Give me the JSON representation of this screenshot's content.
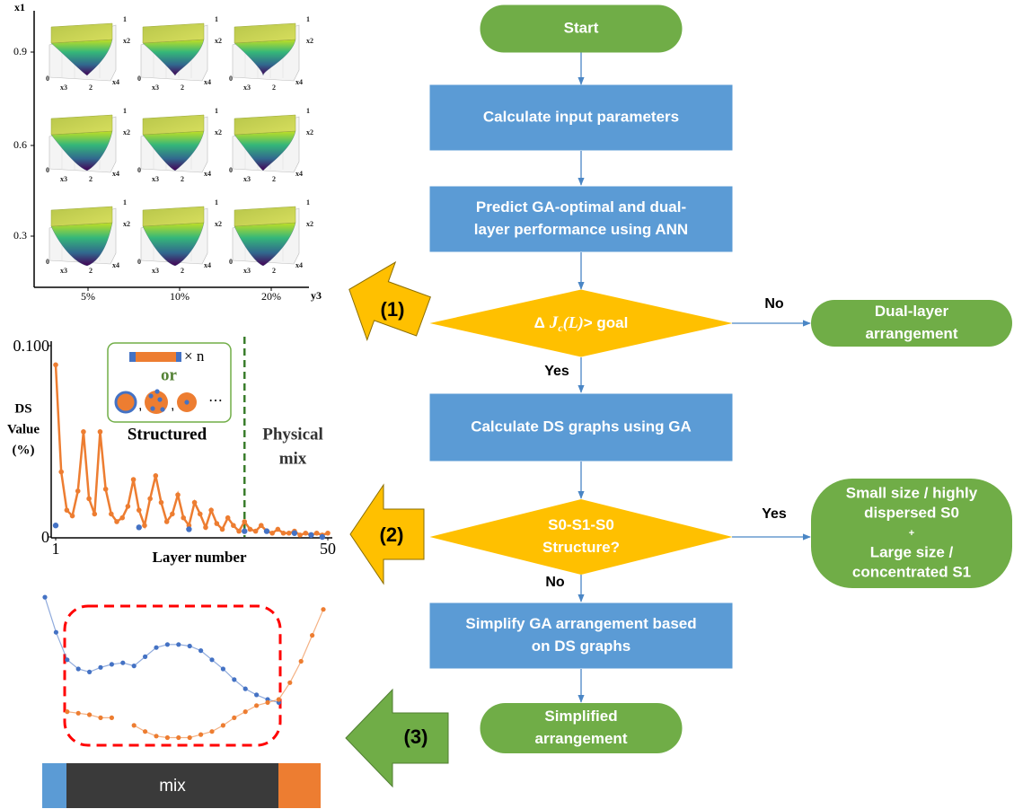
{
  "flowchart": {
    "nodes": [
      {
        "lines": [
          "Start"
        ]
      },
      {
        "lines": [
          "Calculate input parameters"
        ]
      },
      {
        "lines": [
          "Predict GA-optimal and dual-",
          "layer performance using ANN"
        ]
      },
      {
        "condition": {
          "delta": "Δ",
          "symbol": "J",
          "subscript": "c",
          "argument": "(L)",
          "suffix": "> goal"
        }
      },
      {
        "lines": [
          "Dual-layer",
          "arrangement"
        ]
      },
      {
        "lines": [
          "Calculate DS graphs using GA"
        ]
      },
      {
        "lines": [
          "S0-S1-S0",
          "Structure?"
        ]
      },
      {
        "lines": [
          "Small size / highly",
          "dispersed S0",
          "+",
          "Large size /",
          "concentrated S1"
        ]
      },
      {
        "lines": [
          "Simplify GA arrangement based",
          "on DS graphs"
        ]
      },
      {
        "lines": [
          "Simplified",
          "arrangement"
        ]
      }
    ],
    "edge_labels": [
      "No",
      "Yes",
      "Yes",
      "No"
    ]
  },
  "stage_arrows": [
    "(1)",
    "(2)",
    "(3)"
  ],
  "surface_grid": {
    "y_axis_label": "x1",
    "x_axis_label": "y3",
    "yticks": [
      0.9,
      0.6,
      0.3
    ],
    "xticks": [
      {
        "value": 5,
        "label": "5%"
      },
      {
        "value": 10,
        "label": "10%"
      },
      {
        "value": 20,
        "label": "20%"
      }
    ],
    "panel_labels": {
      "vertical": "x2",
      "left": "x3",
      "right": "x4",
      "ticks": [
        0,
        1,
        2
      ]
    }
  },
  "ds_chart": {
    "ylabel": [
      "DS",
      "Value",
      "(%)"
    ],
    "xlabel": "Layer number",
    "ylim": [
      0,
      0.1
    ],
    "yticks": [
      0,
      {
        "value": 0.1,
        "label": "0.100"
      }
    ],
    "xlim": [
      1,
      50
    ],
    "xticks": [
      1,
      50
    ],
    "series": [
      {
        "color": "#ed7d31",
        "values": [
          0.09,
          0.034,
          0.014,
          0.011,
          0.024,
          0.055,
          0.02,
          0.012,
          0.055,
          0.025,
          0.012,
          0.008,
          0.01,
          0.016,
          0.03,
          0.014,
          0.006,
          0.02,
          0.032,
          0.018,
          0.008,
          0.012,
          0.022,
          0.01,
          0.006,
          0.018,
          0.012,
          0.005,
          0.014,
          0.007,
          0.004,
          0.01,
          0.006,
          0.003,
          0.008,
          0.004,
          0.003,
          0.006,
          0.003,
          0.002,
          0.004,
          0.002,
          0.002,
          0.003,
          0.001,
          0.002,
          0.001,
          0.002,
          0.001,
          0.002
        ]
      },
      {
        "color": "#4472c4",
        "values": [
          0.006,
          null,
          null,
          null,
          null,
          null,
          null,
          null,
          null,
          null,
          null,
          null,
          null,
          null,
          null,
          0.005,
          null,
          null,
          null,
          null,
          null,
          null,
          null,
          null,
          0.004,
          null,
          null,
          null,
          null,
          null,
          null,
          null,
          null,
          null,
          0.003,
          null,
          null,
          null,
          0.003,
          null,
          null,
          null,
          null,
          0.002,
          null,
          null,
          0.001,
          null,
          0.0,
          null
        ]
      }
    ],
    "mix_boundary": 35,
    "annotations": {
      "structured": "Structured",
      "physical_mix": [
        "Physical",
        "mix"
      ],
      "or": "or",
      "times_n": "× n",
      "comma": ",",
      "ellipsis": "⋯"
    }
  },
  "profile_chart": {
    "series": [
      {
        "color": "#4472c4",
        "values": [
          0.97,
          0.74,
          0.56,
          0.5,
          0.48,
          0.51,
          0.53,
          0.54,
          0.52,
          0.58,
          0.64,
          0.66,
          0.66,
          0.65,
          0.62,
          0.56,
          0.5,
          0.43,
          0.37,
          0.33,
          0.3,
          0.28,
          null,
          null,
          null,
          null
        ]
      },
      {
        "color": "#ed7d31",
        "values": [
          null,
          null,
          0.22,
          0.21,
          0.2,
          0.18,
          0.18,
          null,
          0.13,
          0.09,
          0.06,
          0.05,
          0.05,
          0.05,
          0.07,
          0.09,
          0.13,
          0.18,
          0.22,
          0.26,
          0.28,
          0.3,
          0.41,
          0.55,
          0.72,
          0.89
        ]
      }
    ]
  },
  "mix_bar": {
    "label": "mix"
  }
}
